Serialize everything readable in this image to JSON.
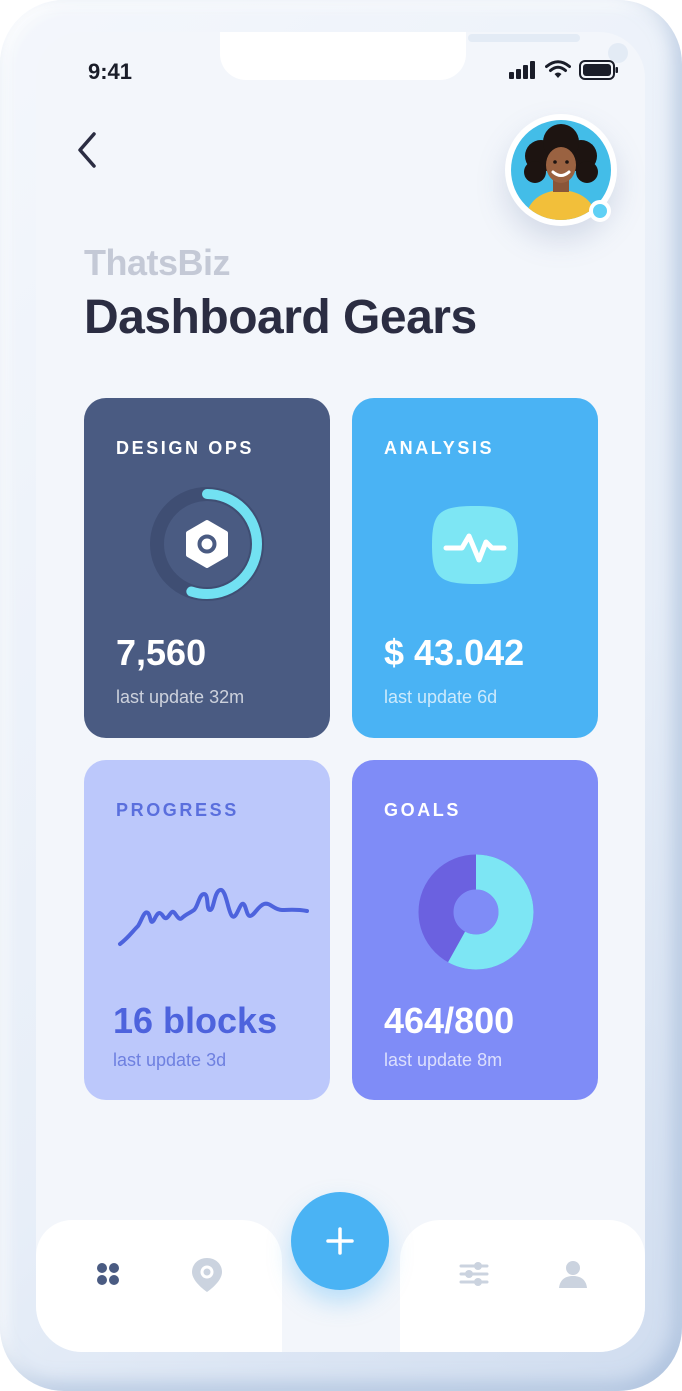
{
  "status_bar": {
    "time": "9:41"
  },
  "header": {
    "brand": "ThatsBiz",
    "title": "Dashboard Gears"
  },
  "cards": [
    {
      "title": "DESIGN OPS",
      "value": "7,560",
      "subtitle": "last update 32m",
      "color": "#4a5b82",
      "progress_fraction": 0.55,
      "icon": "settings-icon"
    },
    {
      "title": "ANALYSIS",
      "value": "$ 43.042",
      "subtitle": "last update 6d",
      "color": "#4ab3f4",
      "icon": "activity-icon"
    },
    {
      "title": "PROGRESS",
      "value": "16 blocks",
      "subtitle": "last update 3d",
      "color": "#bcc8fb",
      "icon": "sparkline-chart"
    },
    {
      "title": "GOALS",
      "value": "464/800",
      "subtitle": "last update 8m",
      "color": "#7f8cf7",
      "completed_fraction": 0.58,
      "icon": "donut-chart"
    }
  ],
  "nav": {
    "items": [
      "grid-icon",
      "location-pin-icon",
      "sliders-icon",
      "user-icon"
    ],
    "fab_icon": "plus-icon",
    "accent": "#4ab3f4"
  }
}
